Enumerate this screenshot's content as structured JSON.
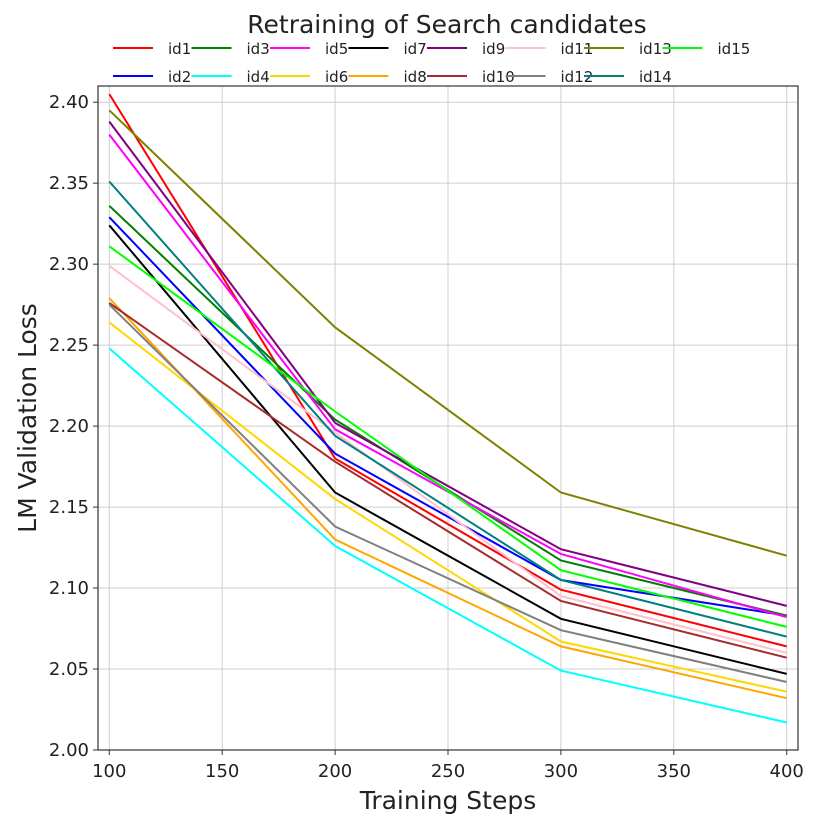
{
  "chart_data": {
    "type": "line",
    "title": "Retraining of Search candidates",
    "xlabel": "Training Steps",
    "ylabel": "LM Validation Loss",
    "x": [
      100,
      200,
      300,
      400
    ],
    "xlim": [
      95,
      405
    ],
    "ylim": [
      2.0,
      2.41
    ],
    "xticks": [
      100,
      150,
      200,
      250,
      300,
      350,
      400
    ],
    "yticks": [
      2.0,
      2.05,
      2.1,
      2.15,
      2.2,
      2.25,
      2.3,
      2.35,
      2.4
    ],
    "xtick_labels": [
      "100",
      "150",
      "200",
      "250",
      "300",
      "350",
      "400"
    ],
    "ytick_labels": [
      "2.00",
      "2.05",
      "2.10",
      "2.15",
      "2.20",
      "2.25",
      "2.30",
      "2.35",
      "2.40"
    ],
    "grid": true,
    "legend_position": "top",
    "series": [
      {
        "name": "id1",
        "color": "#ff0000",
        "values": [
          2.405,
          2.18,
          2.099,
          2.064
        ]
      },
      {
        "name": "id2",
        "color": "#0000ff",
        "values": [
          2.329,
          2.183,
          2.105,
          2.083
        ]
      },
      {
        "name": "id3",
        "color": "#008000",
        "values": [
          2.336,
          2.204,
          2.117,
          2.083
        ]
      },
      {
        "name": "id4",
        "color": "#00ffff",
        "values": [
          2.248,
          2.126,
          2.049,
          2.017
        ]
      },
      {
        "name": "id5",
        "color": "#ff00ff",
        "values": [
          2.38,
          2.198,
          2.121,
          2.082
        ]
      },
      {
        "name": "id6",
        "color": "#ffd700",
        "values": [
          2.264,
          2.155,
          2.067,
          2.036
        ]
      },
      {
        "name": "id7",
        "color": "#000000",
        "values": [
          2.324,
          2.159,
          2.081,
          2.047
        ]
      },
      {
        "name": "id8",
        "color": "#ffa500",
        "values": [
          2.279,
          2.13,
          2.064,
          2.032
        ]
      },
      {
        "name": "id9",
        "color": "#800080",
        "values": [
          2.388,
          2.202,
          2.124,
          2.089
        ]
      },
      {
        "name": "id10",
        "color": "#a52a2a",
        "values": [
          2.276,
          2.178,
          2.092,
          2.057
        ]
      },
      {
        "name": "id11",
        "color": "#ffc0cb",
        "values": [
          2.299,
          2.196,
          2.095,
          2.06
        ]
      },
      {
        "name": "id12",
        "color": "#808080",
        "values": [
          2.275,
          2.138,
          2.074,
          2.042
        ]
      },
      {
        "name": "id13",
        "color": "#808000",
        "values": [
          2.395,
          2.261,
          2.159,
          2.12
        ]
      },
      {
        "name": "id14",
        "color": "#008080",
        "values": [
          2.351,
          2.194,
          2.105,
          2.07
        ]
      },
      {
        "name": "id15",
        "color": "#00ff00",
        "values": [
          2.311,
          2.209,
          2.111,
          2.076
        ]
      }
    ]
  }
}
